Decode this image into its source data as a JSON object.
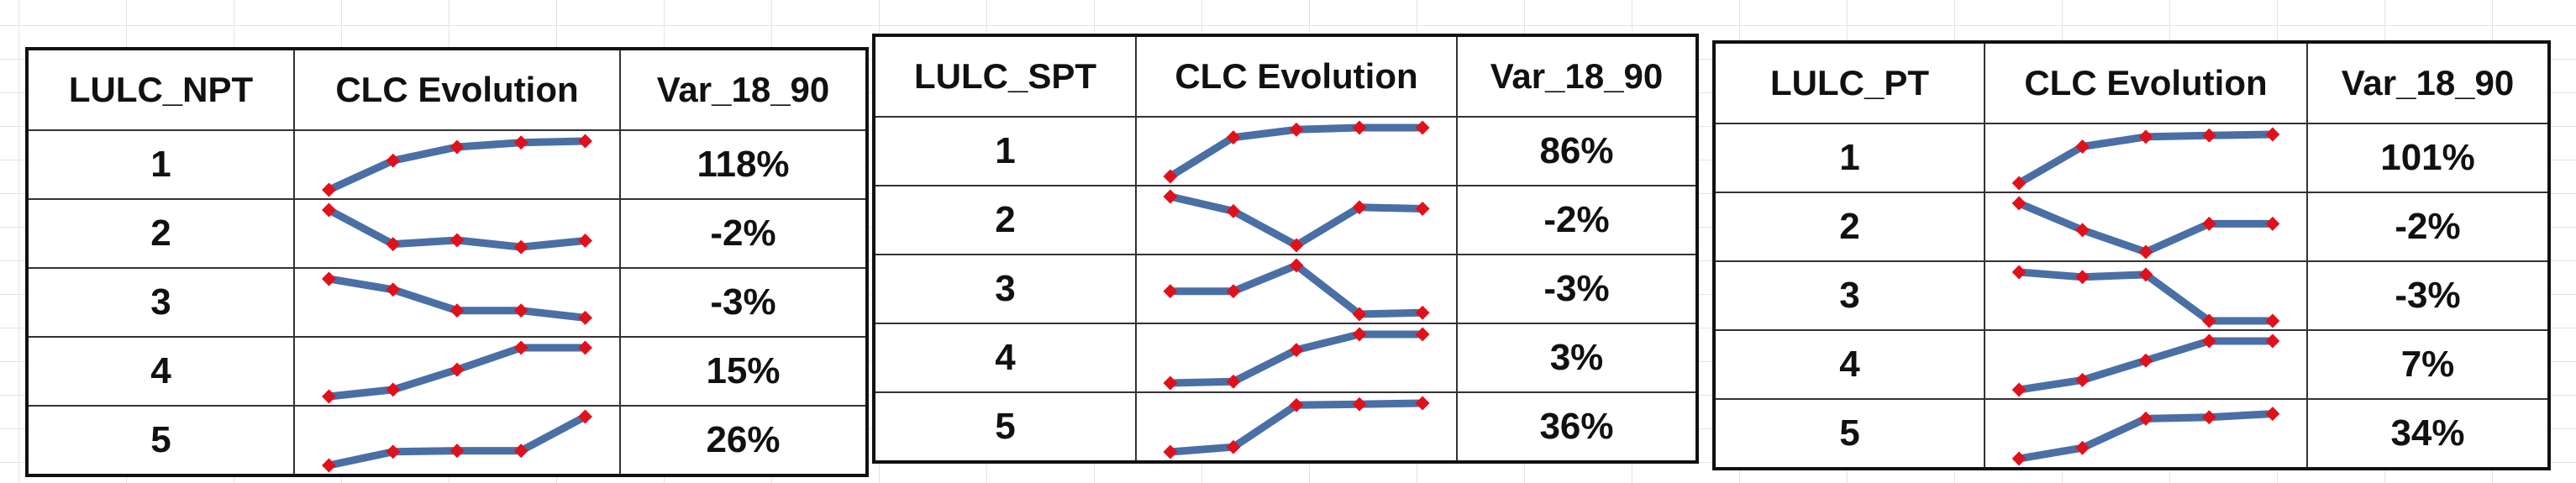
{
  "tables": [
    {
      "id": "npt",
      "headers": [
        "LULC_NPT",
        "CLC Evolution",
        "Var_18_90"
      ],
      "rows": [
        {
          "lulc": "1",
          "var": "118%",
          "trend": [
            0.0,
            0.6,
            0.88,
            0.97,
            1.0
          ]
        },
        {
          "lulc": "2",
          "var": "-2%",
          "trend": [
            1.0,
            0.3,
            0.38,
            0.24,
            0.37
          ]
        },
        {
          "lulc": "3",
          "var": "-3%",
          "trend": [
            1.0,
            0.78,
            0.35,
            0.35,
            0.2
          ]
        },
        {
          "lulc": "4",
          "var": "15%",
          "trend": [
            0.0,
            0.14,
            0.55,
            1.0,
            1.0
          ]
        },
        {
          "lulc": "5",
          "var": "26%",
          "trend": [
            0.0,
            0.28,
            0.3,
            0.3,
            1.0
          ]
        }
      ]
    },
    {
      "id": "spt",
      "headers": [
        "LULC_SPT",
        "CLC Evolution",
        "Var_18_90"
      ],
      "rows": [
        {
          "lulc": "1",
          "var": "86%",
          "trend": [
            0.0,
            0.8,
            0.96,
            1.0,
            1.0
          ]
        },
        {
          "lulc": "2",
          "var": "-2%",
          "trend": [
            1.0,
            0.7,
            0.0,
            0.78,
            0.75
          ]
        },
        {
          "lulc": "3",
          "var": "-3%",
          "trend": [
            0.47,
            0.47,
            1.0,
            0.0,
            0.03
          ]
        },
        {
          "lulc": "4",
          "var": "3%",
          "trend": [
            0.0,
            0.03,
            0.68,
            1.0,
            1.0
          ]
        },
        {
          "lulc": "5",
          "var": "36%",
          "trend": [
            0.0,
            0.1,
            0.96,
            0.98,
            1.0
          ]
        }
      ]
    },
    {
      "id": "pt",
      "headers": [
        "LULC_PT",
        "CLC Evolution",
        "Var_18_90"
      ],
      "rows": [
        {
          "lulc": "1",
          "var": "101%",
          "trend": [
            0.0,
            0.75,
            0.95,
            0.98,
            1.0
          ]
        },
        {
          "lulc": "2",
          "var": "-2%",
          "trend": [
            1.0,
            0.45,
            0.0,
            0.58,
            0.58
          ]
        },
        {
          "lulc": "3",
          "var": "-3%",
          "trend": [
            1.0,
            0.9,
            0.95,
            0.0,
            0.0
          ]
        },
        {
          "lulc": "4",
          "var": "7%",
          "trend": [
            0.0,
            0.2,
            0.6,
            1.0,
            1.0
          ]
        },
        {
          "lulc": "5",
          "var": "34%",
          "trend": [
            0.0,
            0.22,
            0.82,
            0.85,
            0.92
          ]
        }
      ]
    }
  ],
  "colors": {
    "sparkline": "#4a6fa5",
    "marker": "#e0111b"
  }
}
